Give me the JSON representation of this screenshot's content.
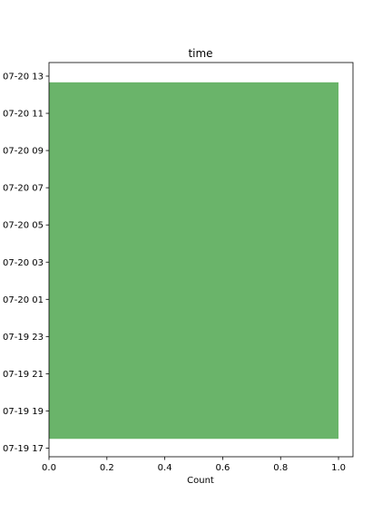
{
  "chart_data": {
    "type": "bar",
    "orientation": "horizontal",
    "title": "time",
    "xlabel": "Count",
    "ylabel": "",
    "xlim": [
      0,
      1.05
    ],
    "x_ticks": [
      "0.0",
      "0.2",
      "0.4",
      "0.6",
      "0.8",
      "1.0"
    ],
    "y_ticks": [
      "07-19 17",
      "07-19 19",
      "07-19 21",
      "07-19 23",
      "07-20 01",
      "07-20 03",
      "07-20 05",
      "07-20 07",
      "07-20 09",
      "07-20 11",
      "07-20 13"
    ],
    "bars": [
      {
        "start": "07-19 17:30",
        "end": "07-20 12:40",
        "value": 1.0
      }
    ],
    "bar_color": "#6ab46a",
    "grid": false,
    "legend": "none"
  }
}
